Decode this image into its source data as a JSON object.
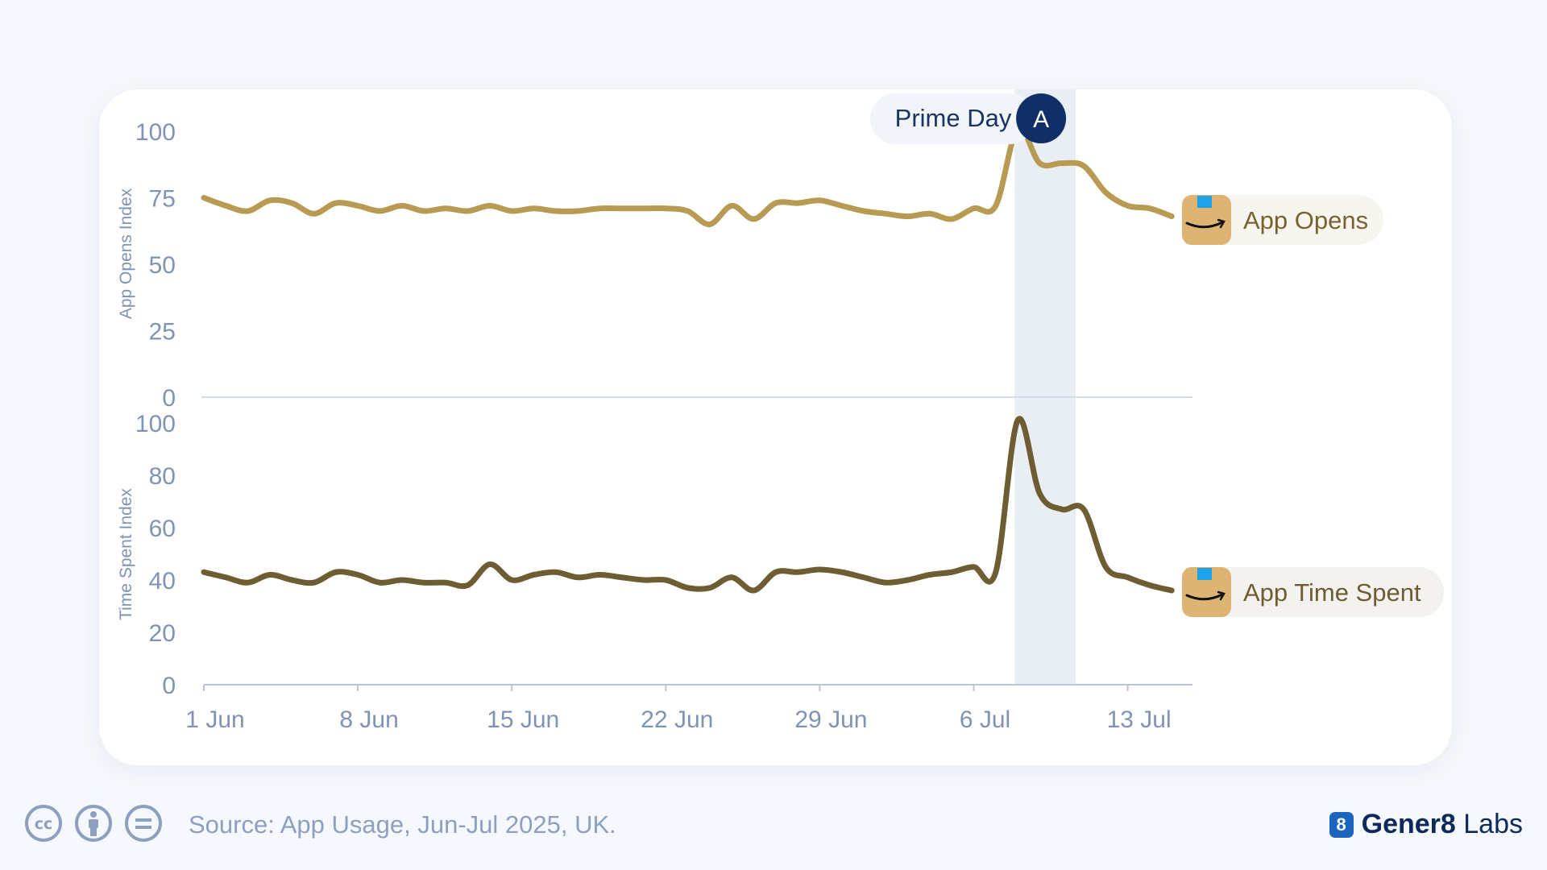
{
  "chart_data": [
    {
      "type": "line",
      "ylabel": "App Opens Index",
      "ylim": [
        0,
        100
      ],
      "yticks": [
        "100",
        "75",
        "50",
        "25",
        "0"
      ],
      "x": [
        "1 Jun",
        "2 Jun",
        "3 Jun",
        "4 Jun",
        "5 Jun",
        "6 Jun",
        "7 Jun",
        "8 Jun",
        "9 Jun",
        "10 Jun",
        "11 Jun",
        "12 Jun",
        "13 Jun",
        "14 Jun",
        "15 Jun",
        "16 Jun",
        "17 Jun",
        "18 Jun",
        "19 Jun",
        "20 Jun",
        "21 Jun",
        "22 Jun",
        "23 Jun",
        "24 Jun",
        "25 Jun",
        "26 Jun",
        "27 Jun",
        "28 Jun",
        "29 Jun",
        "30 Jun",
        "1 Jul",
        "2 Jul",
        "3 Jul",
        "4 Jul",
        "5 Jul",
        "6 Jul",
        "7 Jul",
        "8 Jul",
        "9 Jul",
        "10 Jul",
        "11 Jul",
        "12 Jul",
        "13 Jul",
        "14 Jul",
        "15 Jul"
      ],
      "series": [
        {
          "name": "App Opens",
          "color": "#b89a52",
          "values": [
            75,
            72,
            70,
            74,
            73,
            69,
            73,
            72,
            70,
            72,
            70,
            71,
            70,
            72,
            70,
            71,
            70,
            70,
            71,
            71,
            71,
            71,
            70,
            65,
            72,
            67,
            73,
            73,
            74,
            72,
            70,
            69,
            68,
            69,
            67,
            71,
            72,
            101,
            88,
            88,
            87,
            77,
            72,
            71,
            68
          ]
        }
      ]
    },
    {
      "type": "line",
      "ylabel": "Time Spent Index",
      "ylim": [
        0,
        100
      ],
      "yticks": [
        "100",
        "80",
        "60",
        "40",
        "20",
        "0"
      ],
      "x": [
        "1 Jun",
        "2 Jun",
        "3 Jun",
        "4 Jun",
        "5 Jun",
        "6 Jun",
        "7 Jun",
        "8 Jun",
        "9 Jun",
        "10 Jun",
        "11 Jun",
        "12 Jun",
        "13 Jun",
        "14 Jun",
        "15 Jun",
        "16 Jun",
        "17 Jun",
        "18 Jun",
        "19 Jun",
        "20 Jun",
        "21 Jun",
        "22 Jun",
        "23 Jun",
        "24 Jun",
        "25 Jun",
        "26 Jun",
        "27 Jun",
        "28 Jun",
        "29 Jun",
        "30 Jun",
        "1 Jul",
        "2 Jul",
        "3 Jul",
        "4 Jul",
        "5 Jul",
        "6 Jul",
        "7 Jul",
        "8 Jul",
        "9 Jul",
        "10 Jul",
        "11 Jul",
        "12 Jul",
        "13 Jul",
        "14 Jul",
        "15 Jul"
      ],
      "xticks": [
        "1 Jun",
        "8 Jun",
        "15 Jun",
        "22 Jun",
        "29 Jun",
        "6 Jul",
        "13 Jul"
      ],
      "series": [
        {
          "name": "App Time Spent",
          "color": "#6e5c33",
          "values": [
            43,
            41,
            39,
            42,
            40,
            39,
            43,
            42,
            39,
            40,
            39,
            39,
            38,
            46,
            40,
            42,
            43,
            41,
            42,
            41,
            40,
            40,
            37,
            37,
            41,
            36,
            43,
            43,
            44,
            43,
            41,
            39,
            40,
            42,
            43,
            45,
            43,
            101,
            73,
            67,
            67,
            45,
            41,
            38,
            36
          ]
        }
      ]
    }
  ],
  "annotation": {
    "label": "Prime Day",
    "marker": "A",
    "start": "8 Jul",
    "end": "11 Jul",
    "band_color": "#e9eef5",
    "marker_color": "#0f2f66"
  },
  "legend": [
    {
      "label": "App Opens",
      "icon": "amazon-app-icon",
      "text_color": "#7a6230",
      "bg": "#f7f5ef"
    },
    {
      "label": "App Time Spent",
      "icon": "amazon-app-icon",
      "text_color": "#6e5c33",
      "bg": "#f3f2ef"
    }
  ],
  "footer": {
    "source": "Source: App Usage, Jun-Jul 2025, UK.",
    "license_icons": [
      "cc-icon",
      "attribution-icon",
      "no-derivatives-icon"
    ],
    "brand_mark": "8",
    "brand_bold": "Gener8",
    "brand_rest": "Labs"
  },
  "colors": {
    "axis": "#b8c6d9",
    "tick_text": "#7f93b5",
    "background": "#f5f8fc"
  }
}
